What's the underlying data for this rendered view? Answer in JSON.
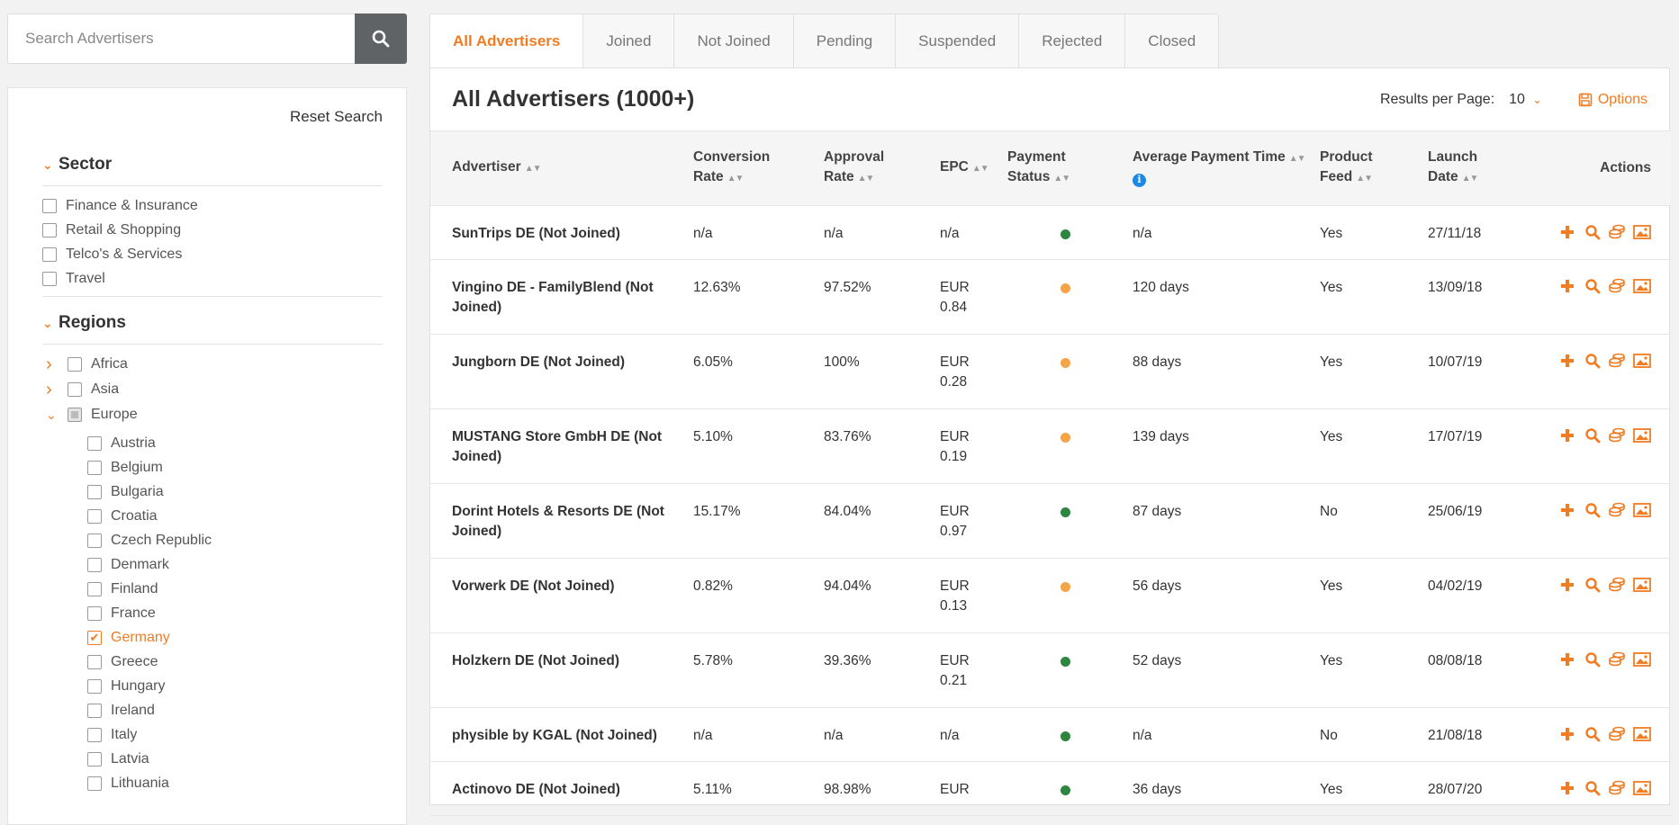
{
  "search": {
    "placeholder": "Search Advertisers"
  },
  "filters": {
    "reset_label": "Reset Search",
    "sector": {
      "title": "Sector",
      "items": [
        "Finance & Insurance",
        "Retail & Shopping",
        "Telco's & Services",
        "Travel"
      ]
    },
    "regions": {
      "title": "Regions",
      "groups": [
        "Africa",
        "Asia",
        "Europe"
      ],
      "countries": [
        "Austria",
        "Belgium",
        "Bulgaria",
        "Croatia",
        "Czech Republic",
        "Denmark",
        "Finland",
        "France",
        "Germany",
        "Greece",
        "Hungary",
        "Ireland",
        "Italy",
        "Latvia",
        "Lithuania"
      ],
      "selected_country": "Germany"
    }
  },
  "tabs": [
    "All Advertisers",
    "Joined",
    "Not Joined",
    "Pending",
    "Suspended",
    "Rejected",
    "Closed"
  ],
  "active_tab": "All Advertisers",
  "main": {
    "title": "All Advertisers (1000+)",
    "results_per_page_label": "Results per Page:",
    "results_per_page_value": "10",
    "options_label": "Options"
  },
  "table": {
    "headers": {
      "advertiser": "Advertiser",
      "conversion_rate": [
        "Conversion",
        "Rate"
      ],
      "approval_rate": [
        "Approval",
        "Rate"
      ],
      "epc": "EPC",
      "payment_status": [
        "Payment",
        "Status"
      ],
      "avg_payment_time": "Average Payment Time",
      "product_feed": [
        "Product",
        "Feed"
      ],
      "launch_date": [
        "Launch",
        "Date"
      ],
      "actions": "Actions"
    },
    "rows": [
      {
        "advertiser": "SunTrips DE (Not Joined)",
        "conversion": "n/a",
        "approval": "n/a",
        "epc": "n/a",
        "status": "green",
        "avg_time": "n/a",
        "feed": "Yes",
        "launch": "27/11/18"
      },
      {
        "advertiser": "Vingino DE - FamilyBlend (Not Joined)",
        "conversion": "12.63%",
        "approval": "97.52%",
        "epc": "EUR 0.84",
        "status": "orange",
        "avg_time": "120 days",
        "feed": "Yes",
        "launch": "13/09/18"
      },
      {
        "advertiser": "Jungborn DE (Not Joined)",
        "conversion": "6.05%",
        "approval": "100%",
        "epc": "EUR 0.28",
        "status": "orange",
        "avg_time": "88 days",
        "feed": "Yes",
        "launch": "10/07/19"
      },
      {
        "advertiser": "MUSTANG Store GmbH DE (Not Joined)",
        "conversion": "5.10%",
        "approval": "83.76%",
        "epc": "EUR 0.19",
        "status": "orange",
        "avg_time": "139 days",
        "feed": "Yes",
        "launch": "17/07/19"
      },
      {
        "advertiser": "Dorint Hotels & Resorts DE (Not Joined)",
        "conversion": "15.17%",
        "approval": "84.04%",
        "epc": "EUR 0.97",
        "status": "green",
        "avg_time": "87 days",
        "feed": "No",
        "launch": "25/06/19"
      },
      {
        "advertiser": "Vorwerk DE (Not Joined)",
        "conversion": "0.82%",
        "approval": "94.04%",
        "epc": "EUR 0.13",
        "status": "orange",
        "avg_time": "56 days",
        "feed": "Yes",
        "launch": "04/02/19"
      },
      {
        "advertiser": "Holzkern DE (Not Joined)",
        "conversion": "5.78%",
        "approval": "39.36%",
        "epc": "EUR 0.21",
        "status": "green",
        "avg_time": "52 days",
        "feed": "Yes",
        "launch": "08/08/18"
      },
      {
        "advertiser": "physible by KGAL (Not Joined)",
        "conversion": "n/a",
        "approval": "n/a",
        "epc": "n/a",
        "status": "green",
        "avg_time": "n/a",
        "feed": "No",
        "launch": "21/08/18"
      },
      {
        "advertiser": "Actinovo DE (Not Joined)",
        "conversion": "5.11%",
        "approval": "98.98%",
        "epc": "EUR",
        "status": "green",
        "avg_time": "36 days",
        "feed": "Yes",
        "launch": "28/07/20"
      }
    ]
  },
  "colors": {
    "accent": "#f07c24",
    "status_green": "#2e8540",
    "status_orange": "#f5a448",
    "info_blue": "#1e88e5"
  },
  "icons": {
    "search": "search-icon",
    "options": "save-icon",
    "row_actions": [
      "plus-icon",
      "search-icon",
      "stack-icon",
      "image-icon"
    ]
  }
}
